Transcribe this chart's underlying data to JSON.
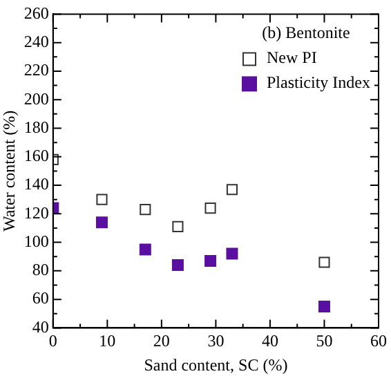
{
  "chart_data": {
    "type": "scatter",
    "xlabel": "Sand content, SC (%)",
    "ylabel": "Water content (%)",
    "legend_title": "(b) Bentonite",
    "x": [
      0,
      9,
      17,
      23,
      29,
      33,
      50
    ],
    "series": [
      {
        "name": "New PI",
        "color": "#333333",
        "marker": "square",
        "values": [
          158,
          130,
          123,
          111,
          124,
          137,
          86
        ]
      },
      {
        "name": "Plasticity Index",
        "color": "#5b0fa0",
        "marker": "square",
        "values": [
          124,
          114,
          95,
          84,
          87,
          92,
          55
        ]
      }
    ],
    "xlim": [
      0,
      60
    ],
    "xticks": [
      0,
      10,
      20,
      30,
      40,
      50,
      60
    ],
    "ylim": [
      40,
      260
    ],
    "yticks": [
      40,
      60,
      80,
      100,
      120,
      140,
      160,
      180,
      200,
      220,
      240,
      260
    ],
    "grid": false,
    "legend": "top right"
  }
}
